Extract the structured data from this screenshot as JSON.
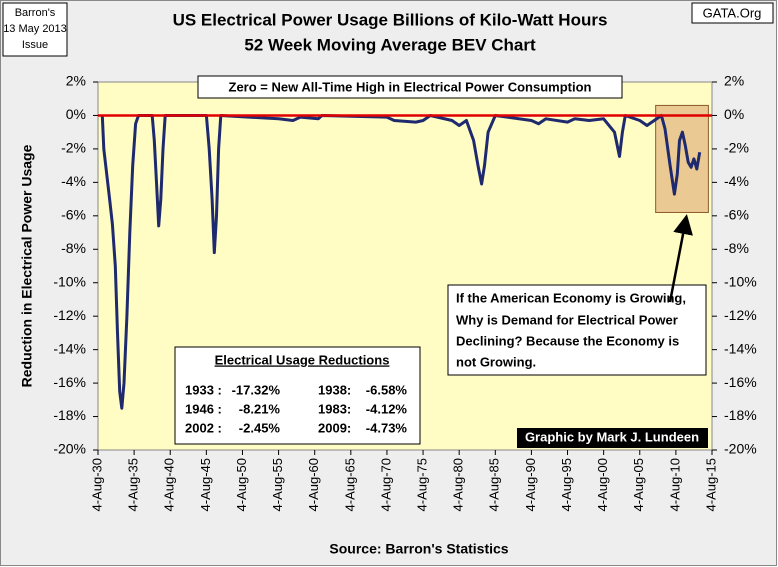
{
  "chart_data": {
    "type": "line",
    "title": [
      "US Electrical Power Usage Billions of Kilo-Watt Hours",
      "52 Week Moving Average BEV Chart"
    ],
    "source_box": [
      "Barron's",
      "13 May 2013",
      "Issue"
    ],
    "site": "GATA.Org",
    "y_label": "Reduction in Electrical Power Usage",
    "x_label": "Source: Barron's Statistics",
    "note_top": "Zero = New All-Time High in Electrical Power Consumption",
    "comment": [
      "If the American Economy is Growing,",
      "Why is Demand for Electrical Power",
      "Declining?  Because the Economy is",
      "not Growing."
    ],
    "credit": "Graphic by Mark J. Lundeen",
    "table": {
      "title": "Electrical Usage Reductions",
      "rows": [
        [
          "1933 :",
          "-17.32%",
          "1938:",
          "-6.58%"
        ],
        [
          "1946 :",
          "-8.21%",
          "1983:",
          "-4.12%"
        ],
        [
          "2002 :",
          "-2.45%",
          "2009:",
          "-4.73%"
        ]
      ]
    },
    "x": [
      1930.6,
      1930.8,
      1931.2,
      1931.6,
      1932.0,
      1932.4,
      1932.7,
      1933.0,
      1933.3,
      1933.6,
      1934.0,
      1934.4,
      1934.8,
      1935.2,
      1935.6,
      1937.5,
      1937.8,
      1938.1,
      1938.4,
      1938.7,
      1939.0,
      1939.3,
      1945.0,
      1945.4,
      1945.8,
      1946.1,
      1946.4,
      1946.7,
      1947.0,
      1955.0,
      1957.0,
      1958.0,
      1960.5,
      1961.0,
      1970.0,
      1971.0,
      1974.0,
      1975.0,
      1976.0,
      1979.0,
      1980.0,
      1981.0,
      1982.0,
      1982.6,
      1983.1,
      1983.5,
      1984.0,
      1985.0,
      1990.0,
      1991.0,
      1992.0,
      1995.0,
      1996.0,
      1998.0,
      2000.0,
      2001.5,
      2002.2,
      2002.6,
      2003.0,
      2005.0,
      2006.0,
      2007.0,
      2008.0,
      2008.5,
      2009.2,
      2009.8,
      2010.2,
      2010.5,
      2010.9,
      2011.3,
      2011.7,
      2012.1,
      2012.5,
      2012.9,
      2013.3
    ],
    "values": [
      0,
      -2,
      -3.5,
      -5,
      -6.5,
      -9,
      -13,
      -16.5,
      -17.5,
      -16,
      -12,
      -7,
      -3,
      -0.5,
      0,
      0,
      -1.5,
      -4,
      -6.6,
      -5,
      -2,
      0,
      0,
      -2,
      -5,
      -8.2,
      -6,
      -2,
      0,
      -0.2,
      -0.3,
      -0.1,
      -0.2,
      0,
      -0.1,
      -0.3,
      -0.4,
      -0.3,
      0,
      -0.3,
      -0.6,
      -0.3,
      -1.5,
      -3,
      -4.1,
      -3,
      -1,
      0,
      -0.3,
      -0.5,
      -0.2,
      -0.4,
      -0.2,
      -0.3,
      -0.2,
      -1,
      -2.45,
      -1,
      0,
      -0.3,
      -0.6,
      -0.3,
      0,
      -0.8,
      -3,
      -4.7,
      -3.5,
      -1.5,
      -1,
      -1.8,
      -2.8,
      -3.1,
      -2.6,
      -3.2,
      -2.2
    ],
    "color": "#1f2a6e",
    "reference_line": {
      "value": 0,
      "color": "#e00000"
    },
    "highlight": {
      "x": [
        2007.2,
        2014.5
      ],
      "y": [
        -5.8,
        0.6
      ],
      "color": "#e6c08a"
    },
    "xlim": [
      1930,
      2015
    ],
    "xticks": [
      {
        "value": 1930,
        "label": "4-Aug-30"
      },
      {
        "value": 1935,
        "label": "4-Aug-35"
      },
      {
        "value": 1940,
        "label": "4-Aug-40"
      },
      {
        "value": 1945,
        "label": "4-Aug-45"
      },
      {
        "value": 1950,
        "label": "4-Aug-50"
      },
      {
        "value": 1955,
        "label": "4-Aug-55"
      },
      {
        "value": 1960,
        "label": "4-Aug-60"
      },
      {
        "value": 1965,
        "label": "4-Aug-65"
      },
      {
        "value": 1970,
        "label": "4-Aug-70"
      },
      {
        "value": 1975,
        "label": "4-Aug-75"
      },
      {
        "value": 1980,
        "label": "4-Aug-80"
      },
      {
        "value": 1985,
        "label": "4-Aug-85"
      },
      {
        "value": 1990,
        "label": "4-Aug-90"
      },
      {
        "value": 1995,
        "label": "4-Aug-95"
      },
      {
        "value": 2000,
        "label": "4-Aug-00"
      },
      {
        "value": 2005,
        "label": "4-Aug-05"
      },
      {
        "value": 2010,
        "label": "4-Aug-10"
      },
      {
        "value": 2015,
        "label": "4-Aug-15"
      }
    ],
    "ylim": [
      -20,
      2
    ],
    "yticks": [
      {
        "value": 2,
        "label": "2%"
      },
      {
        "value": 0,
        "label": "0%"
      },
      {
        "value": -2,
        "label": "-2%"
      },
      {
        "value": -4,
        "label": "-4%"
      },
      {
        "value": -6,
        "label": "-6%"
      },
      {
        "value": -8,
        "label": "-8%"
      },
      {
        "value": -10,
        "label": "-10%"
      },
      {
        "value": -12,
        "label": "-12%"
      },
      {
        "value": -14,
        "label": "-14%"
      },
      {
        "value": -16,
        "label": "-16%"
      },
      {
        "value": -18,
        "label": "-18%"
      },
      {
        "value": -20,
        "label": "-20%"
      }
    ],
    "y2lim": [
      -20,
      2
    ],
    "y2ticks": [
      {
        "value": 2,
        "label": "2%"
      },
      {
        "value": 0,
        "label": "0%"
      },
      {
        "value": -2,
        "label": "-2%"
      },
      {
        "value": -4,
        "label": "-4%"
      },
      {
        "value": -6,
        "label": "-6%"
      },
      {
        "value": -8,
        "label": "-8%"
      },
      {
        "value": -10,
        "label": "-10%"
      },
      {
        "value": -12,
        "label": "-12%"
      },
      {
        "value": -14,
        "label": "-14%"
      },
      {
        "value": -16,
        "label": "-16%"
      },
      {
        "value": -18,
        "label": "-18%"
      },
      {
        "value": -20,
        "label": "-20%"
      }
    ],
    "background": "#fffcc4"
  }
}
